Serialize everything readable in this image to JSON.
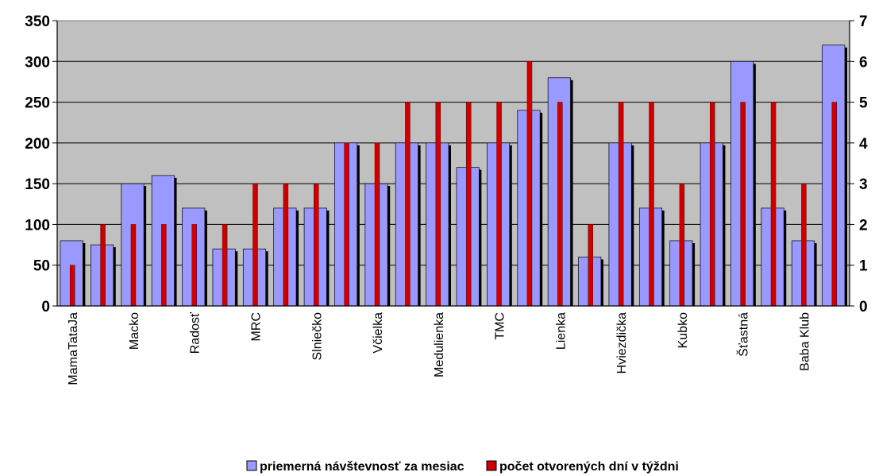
{
  "chart_data": {
    "type": "bar",
    "title": "",
    "xlabel": "",
    "ylabel": "",
    "y_left_lim": [
      0,
      350
    ],
    "y_left_ticks": [
      "0",
      "50",
      "100",
      "150",
      "200",
      "250",
      "300",
      "350"
    ],
    "y_right_lim": [
      0,
      7
    ],
    "y_right_ticks": [
      "0",
      "1",
      "2",
      "3",
      "4",
      "5",
      "6",
      "7"
    ],
    "grid": true,
    "legend_position": "bottom",
    "category_count": 26,
    "visible_category_labels": [
      {
        "index": 0,
        "label": "MamaTataJa"
      },
      {
        "index": 2,
        "label": "Macko"
      },
      {
        "index": 4,
        "label": "Radosť"
      },
      {
        "index": 6,
        "label": "MRC"
      },
      {
        "index": 8,
        "label": "Slniečko"
      },
      {
        "index": 10,
        "label": "Včielka"
      },
      {
        "index": 12,
        "label": "Medulienka"
      },
      {
        "index": 14,
        "label": "TMC"
      },
      {
        "index": 16,
        "label": "Lienka"
      },
      {
        "index": 18,
        "label": "Hviezdička"
      },
      {
        "index": 20,
        "label": "Kubko"
      },
      {
        "index": 22,
        "label": "Šťastná"
      },
      {
        "index": 24,
        "label": "Baba Klub"
      }
    ],
    "series": [
      {
        "name": "priemerná návštevnosť za mesiac",
        "axis": "left",
        "color": "#9999FF",
        "values": [
          80,
          75,
          150,
          160,
          120,
          70,
          70,
          120,
          120,
          200,
          150,
          200,
          200,
          170,
          200,
          240,
          280,
          60,
          200,
          120,
          80,
          200,
          300,
          120,
          80,
          320
        ]
      },
      {
        "name": "počet otvorených dní v týždni",
        "axis": "right",
        "color": "#CC0000",
        "values": [
          1,
          2,
          2,
          2,
          2,
          2,
          3,
          3,
          3,
          4,
          4,
          5,
          5,
          5,
          5,
          6,
          5,
          2,
          5,
          5,
          3,
          5,
          5,
          5,
          3,
          5
        ]
      }
    ],
    "colors": {
      "plot_background": "#C0C0C0",
      "gridline": "#000000"
    }
  }
}
